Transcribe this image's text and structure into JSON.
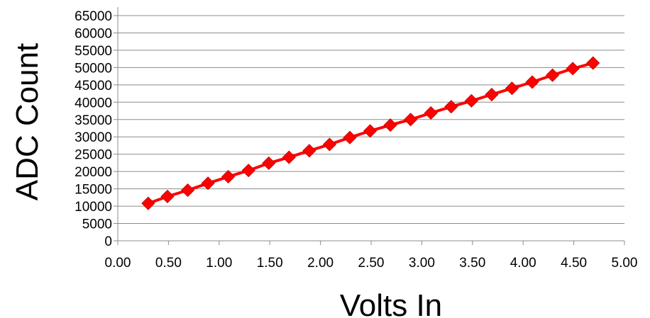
{
  "chart_data": {
    "type": "line",
    "title": "",
    "xlabel": "Volts In",
    "ylabel": "ADC Count",
    "xlim": [
      0,
      5
    ],
    "ylim": [
      0,
      65000
    ],
    "x_ticks": [
      "0.00",
      "0.50",
      "1.00",
      "1.50",
      "2.00",
      "2.50",
      "3.00",
      "3.50",
      "4.00",
      "4.50",
      "5.00"
    ],
    "y_ticks": [
      "0",
      "5000",
      "10000",
      "15000",
      "20000",
      "25000",
      "30000",
      "35000",
      "40000",
      "45000",
      "50000",
      "55000",
      "60000",
      "65000"
    ],
    "grid": "horizontal",
    "legend": "none",
    "marker": "diamond",
    "series": [
      {
        "color": "#ff0000",
        "x": [
          0.3,
          0.49,
          0.69,
          0.89,
          1.09,
          1.29,
          1.49,
          1.69,
          1.89,
          2.09,
          2.29,
          2.49,
          2.69,
          2.89,
          3.09,
          3.29,
          3.49,
          3.69,
          3.89,
          4.09,
          4.29,
          4.49,
          4.69
        ],
        "y": [
          10800,
          12800,
          14600,
          16600,
          18500,
          20300,
          22400,
          24100,
          26000,
          27800,
          29800,
          31700,
          33400,
          35000,
          36900,
          38700,
          40400,
          42200,
          44000,
          45800,
          47800,
          49700,
          51300
        ]
      }
    ]
  }
}
